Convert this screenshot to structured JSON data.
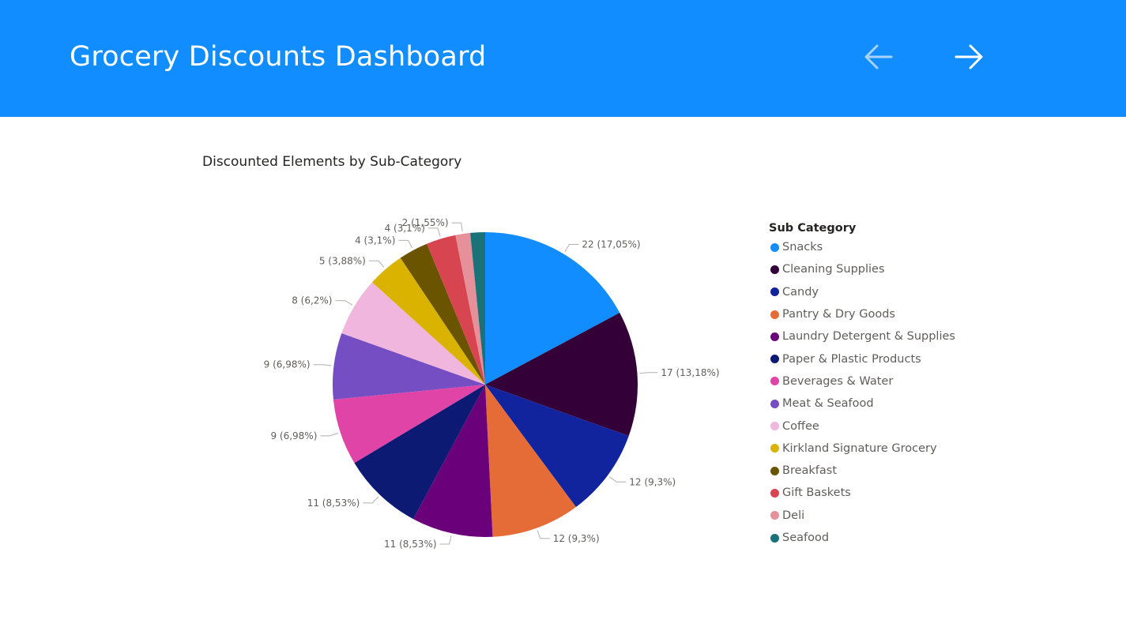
{
  "header": {
    "title": "Grocery Discounts Dashboard",
    "background": "#118dff",
    "back_icon": "arrow-left-icon",
    "forward_icon": "arrow-right-icon"
  },
  "chart_data": {
    "type": "pie",
    "title": "Discounted Elements by Sub-Category",
    "legend_title": "Sub Category",
    "legend_placement": "right",
    "categories": [
      "Snacks",
      "Cleaning Supplies",
      "Candy",
      "Pantry & Dry Goods",
      "Laundry Detergent & Supplies",
      "Paper & Plastic Products",
      "Beverages & Water",
      "Meat & Seafood",
      "Coffee",
      "Kirkland Signature Grocery",
      "Breakfast",
      "Gift Baskets",
      "Deli",
      "Seafood"
    ],
    "values": [
      22,
      17,
      12,
      12,
      11,
      11,
      9,
      9,
      8,
      5,
      4,
      4,
      2,
      2
    ],
    "data_labels": [
      "22 (17,05%)",
      "17 (13,18%)",
      "12 (9,3%)",
      "12 (9,3%)",
      "11 (8,53%)",
      "11 (8,53%)",
      "9 (6,98%)",
      "9 (6,98%)",
      "8 (6,2%)",
      "5 (3,88%)",
      "4 (3,1%)",
      "4 (3,1%)",
      "2 (1,55%)",
      ""
    ],
    "colors": [
      "#118dff",
      "#330038",
      "#12239e",
      "#e66c37",
      "#6b007b",
      "#0d1a73",
      "#e044a7",
      "#744ec2",
      "#f0b6de",
      "#d9b300",
      "#6b5400",
      "#d64550",
      "#e6919a",
      "#197278"
    ]
  }
}
